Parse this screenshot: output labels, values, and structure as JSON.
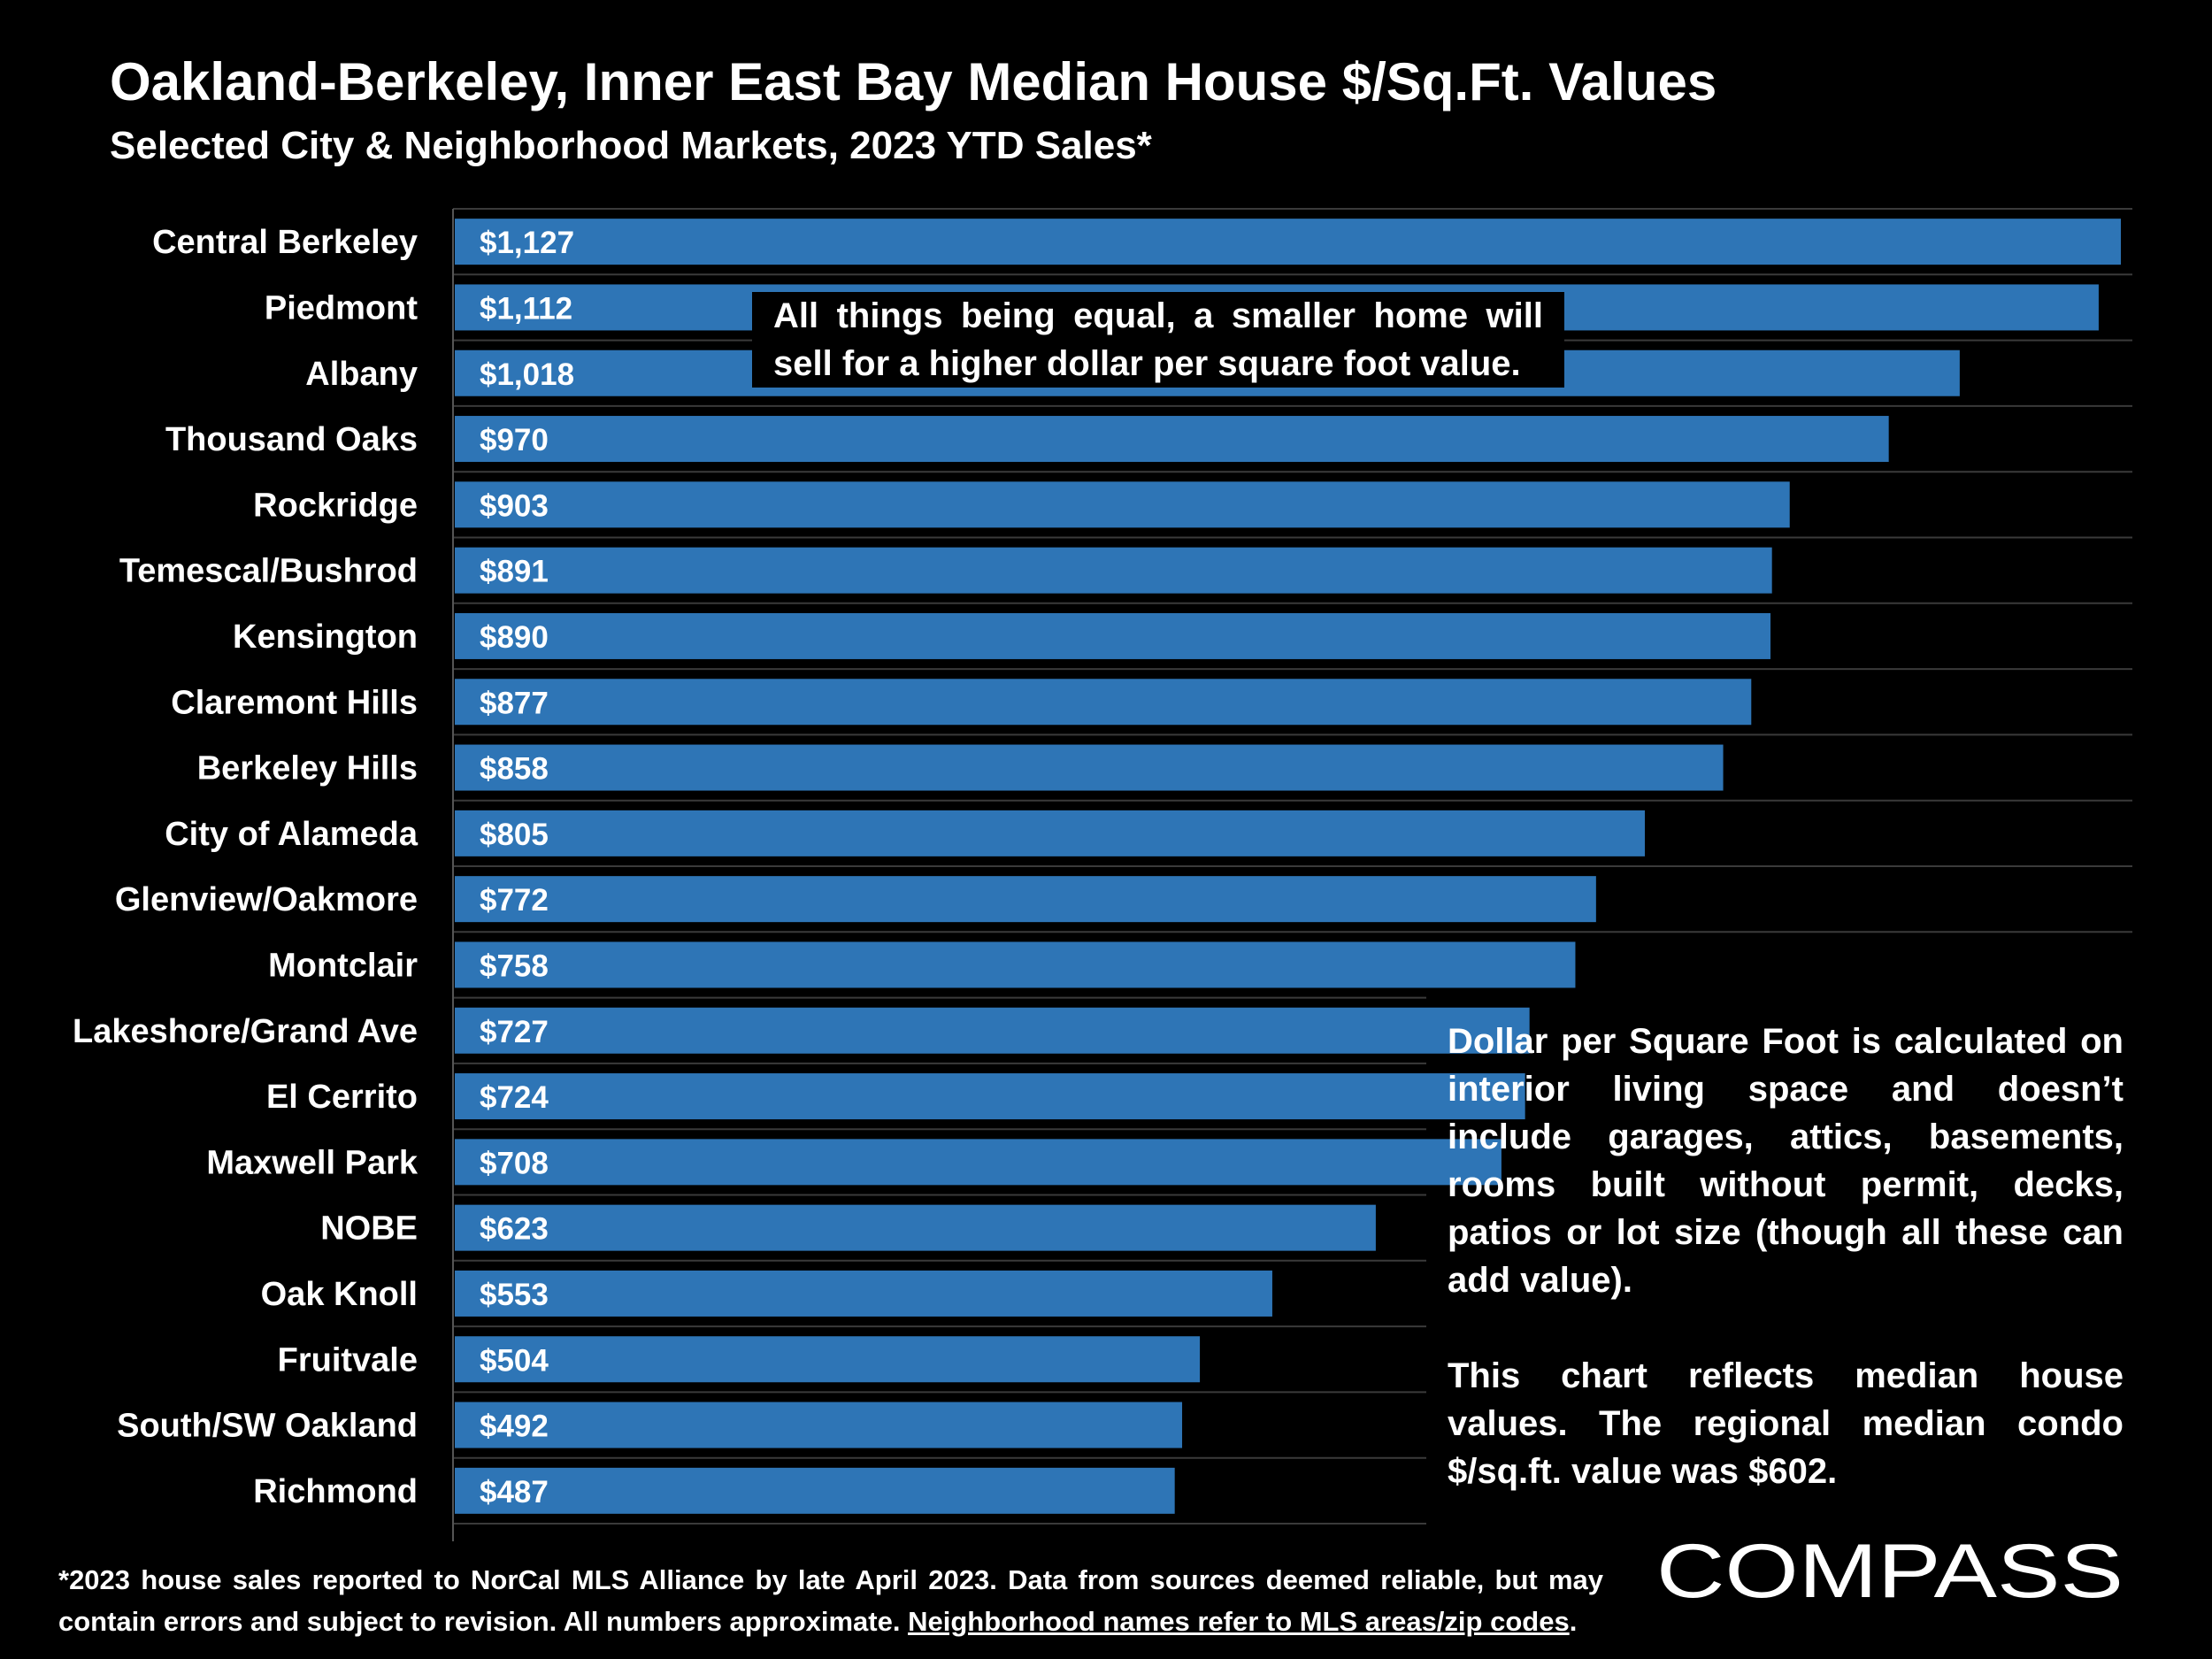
{
  "header": {
    "title": "Oakland-Berkeley, Inner East Bay Median House $/Sq.Ft. Values",
    "subtitle": "Selected City & Neighborhood Markets, 2023 YTD Sales*"
  },
  "notes": {
    "top": "All things being equal, a smaller home will sell for a higher dollar per square foot value.",
    "right_p1": "Dollar per Square Foot is calculated on interior living space and doesn’t include garages, attics, basements, rooms built without permit, decks, patios or lot size (though all these can add value).",
    "right_p2": "This chart reflects median house values. The regional median condo $/sq.ft. value was $602."
  },
  "footnote": {
    "text": "*2023 house sales reported to NorCal MLS Alliance by late April 2023. Data from sources deemed reliable, but may contain errors and subject to revision. All numbers approximate. ",
    "link": "Neighborhood names refer to MLS areas/zip codes",
    "end": "."
  },
  "logo": {
    "text": "COMPASS"
  },
  "colors": {
    "bar": "#2e75b6",
    "background": "#000000",
    "text": "#ffffff",
    "gridline": "#3a3a3a"
  },
  "chart_data": {
    "type": "bar",
    "orientation": "horizontal",
    "categories": [
      "Central Berkeley",
      "Piedmont",
      "Albany",
      "Thousand Oaks",
      "Rockridge",
      "Temescal/Bushrod",
      "Kensington",
      "Claremont Hills",
      "Berkeley Hills",
      "City of Alameda",
      "Glenview/Oakmore",
      "Montclair",
      "Lakeshore/Grand Ave",
      "El Cerrito",
      "Maxwell Park",
      "NOBE",
      "Oak Knoll",
      "Fruitvale",
      "South/SW Oakland",
      "Richmond"
    ],
    "values": [
      1127,
      1112,
      1018,
      970,
      903,
      891,
      890,
      877,
      858,
      805,
      772,
      758,
      727,
      724,
      708,
      623,
      553,
      504,
      492,
      487
    ],
    "value_labels": [
      "$1,127",
      "$1,112",
      "$1,018",
      "$970",
      "$903",
      "$891",
      "$890",
      "$877",
      "$858",
      "$805",
      "$772",
      "$758",
      "$727",
      "$724",
      "$708",
      "$623",
      "$553",
      "$504",
      "$492",
      "$487"
    ],
    "xlim": [
      0,
      1130
    ],
    "grid": true,
    "legend": "none"
  }
}
